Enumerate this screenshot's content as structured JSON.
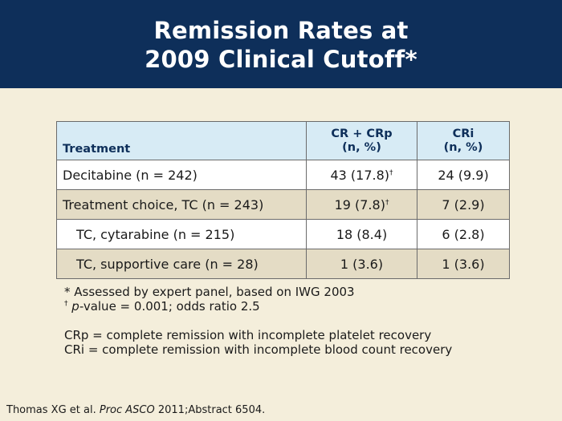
{
  "slide": {
    "title_line1": "Remission Rates at",
    "title_line2": "2009 Clinical Cutoff*"
  },
  "table": {
    "headers": {
      "treatment": "Treatment",
      "crcrp_line1": "CR + CRp",
      "crcrp_line2": "(n, %)",
      "cri_line1": "CRi",
      "cri_line2": "(n, %)"
    },
    "rows": [
      {
        "label": "Decitabine (n = 242)",
        "crcrp": "43 (17.8)",
        "crcrp_mark": "†",
        "cri": "24 (9.9)"
      },
      {
        "label": "Treatment choice, TC (n = 243)",
        "crcrp": "19 (7.8)",
        "crcrp_mark": "†",
        "cri": "7 (2.9)"
      },
      {
        "label": "TC, cytarabine (n = 215)",
        "crcrp": "18 (8.4)",
        "cri": "6 (2.8)"
      },
      {
        "label": "TC, supportive care (n = 28)",
        "crcrp": "1 (3.6)",
        "cri": "1 (3.6)"
      }
    ]
  },
  "footnotes": {
    "asterisk": "* Assessed by expert panel, based on IWG 2003",
    "dagger_mark": "†",
    "dagger_p": "p",
    "dagger_rest": "-value = 0.001; odds ratio 2.5",
    "crp_def": "CRp = complete remission with incomplete platelet recovery",
    "cri_def": "CRi = complete remission with incomplete blood count recovery"
  },
  "citation": {
    "authors": "Thomas XG et al. ",
    "journal": "Proc ASCO",
    "rest": " 2011;Abstract 6504."
  },
  "colors": {
    "header_bg": "#0e2f5a",
    "page_bg": "#f4eedb",
    "table_header_bg": "#d7ebf5",
    "row_tan": "#e4dcc5",
    "row_white": "#ffffff"
  }
}
